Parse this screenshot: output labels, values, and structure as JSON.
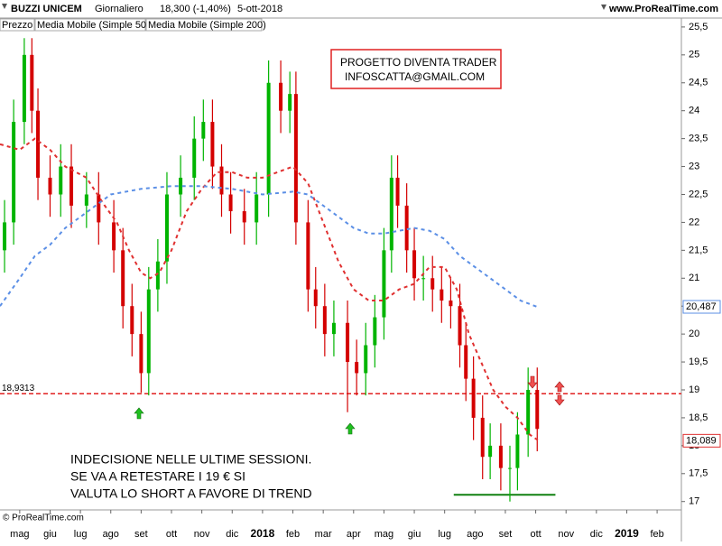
{
  "chart_data": {
    "type": "candlestick",
    "title": "BUZZI UNICEM",
    "period": "Giornaliero",
    "last_price": "18,300 (-1,40%)",
    "date": "5-ott-2018",
    "source": "www.ProRealTime.com",
    "copyright": "© ProRealTime.com",
    "price_name": "Prezzo",
    "x": [
      -0.5,
      -0.2,
      0.15,
      0.4,
      0.6,
      1.0,
      1.35,
      1.7,
      2.2,
      2.6,
      3.1,
      3.4,
      3.7,
      4.0,
      4.25,
      4.55,
      4.85,
      5.3,
      5.75,
      6.05,
      6.35,
      6.65,
      6.95,
      7.4,
      7.8,
      8.2,
      8.6,
      8.9,
      9.1,
      9.5,
      9.75,
      10.05,
      10.35,
      10.8,
      11.1,
      11.4,
      11.7,
      12.0,
      12.25,
      12.45,
      12.75,
      13.0,
      13.3,
      13.6,
      13.9,
      14.2,
      14.5,
      14.7,
      14.95,
      15.25,
      15.5,
      15.85,
      16.15,
      16.4,
      16.75,
      17.05
    ],
    "open": [
      21.5,
      22.0,
      23.8,
      25.0,
      24.0,
      22.8,
      22.5,
      23.0,
      22.3,
      22.5,
      22.0,
      21.5,
      20.5,
      20.0,
      19.3,
      20.8,
      21.3,
      22.5,
      22.8,
      23.5,
      23.8,
      23.0,
      22.5,
      22.2,
      22.0,
      22.5,
      24.5,
      24.0,
      24.3,
      22.0,
      20.8,
      20.5,
      20.0,
      20.2,
      19.5,
      19.3,
      19.8,
      20.3,
      21.5,
      22.8,
      22.3,
      21.5,
      21.0,
      21.0,
      20.8,
      20.6,
      20.5,
      19.8,
      19.2,
      18.5,
      17.8,
      18.0,
      17.6,
      17.6,
      18.2,
      19.0
    ],
    "high": [
      22.4,
      24.2,
      25.3,
      25.3,
      24.4,
      23.2,
      23.4,
      23.4,
      22.9,
      22.9,
      22.4,
      21.9,
      20.9,
      20.4,
      21.2,
      21.7,
      22.9,
      23.2,
      23.9,
      24.2,
      24.2,
      23.4,
      22.9,
      22.6,
      22.9,
      24.9,
      24.9,
      24.7,
      24.7,
      22.4,
      21.2,
      20.9,
      20.6,
      20.6,
      19.9,
      20.2,
      20.7,
      21.9,
      23.2,
      23.2,
      22.7,
      21.9,
      21.4,
      21.4,
      21.2,
      21.0,
      20.9,
      20.2,
      19.6,
      18.9,
      18.4,
      18.4,
      18.0,
      18.6,
      19.4,
      19.4
    ],
    "low": [
      21.1,
      21.6,
      23.4,
      23.6,
      22.4,
      22.1,
      22.1,
      21.9,
      21.9,
      21.6,
      21.1,
      20.1,
      19.6,
      18.95,
      18.9,
      20.4,
      20.9,
      22.1,
      22.4,
      23.1,
      22.6,
      22.1,
      21.8,
      21.6,
      21.6,
      22.1,
      23.6,
      23.6,
      21.6,
      20.4,
      20.1,
      19.6,
      19.6,
      18.6,
      18.9,
      18.9,
      19.4,
      19.9,
      21.1,
      21.9,
      21.1,
      20.6,
      20.6,
      20.4,
      20.2,
      20.1,
      19.4,
      18.8,
      18.1,
      17.4,
      17.4,
      17.2,
      17.0,
      17.2,
      17.8,
      17.9
    ],
    "close": [
      22.0,
      23.8,
      25.0,
      24.0,
      22.8,
      22.5,
      23.0,
      22.3,
      22.5,
      22.0,
      21.5,
      20.5,
      20.0,
      19.3,
      20.8,
      21.3,
      22.5,
      22.8,
      23.5,
      23.8,
      23.0,
      22.5,
      22.2,
      22.0,
      22.5,
      24.5,
      24.0,
      24.3,
      22.0,
      20.8,
      20.5,
      20.0,
      20.2,
      19.5,
      19.3,
      19.8,
      20.3,
      21.5,
      22.8,
      22.3,
      21.5,
      21.0,
      21.0,
      20.8,
      20.6,
      20.5,
      19.8,
      19.2,
      18.5,
      17.8,
      18.0,
      17.6,
      17.6,
      18.2,
      19.0,
      18.3
    ],
    "up_color": "#00b400",
    "down_color": "#d40000",
    "series": [
      {
        "name": "Media Mobile (Simple 50)",
        "color": "#e03030",
        "x": [
          -0.65,
          0,
          0.5,
          1,
          1.5,
          2.2,
          2.8,
          3.2,
          3.6,
          4.0,
          4.3,
          4.6,
          5.0,
          5.5,
          6.0,
          6.5,
          7.0,
          7.5,
          8.0,
          8.5,
          9.0,
          9.5,
          10.0,
          10.5,
          11.0,
          11.5,
          12.0,
          12.5,
          13.0,
          13.5,
          14.0,
          14.4,
          14.8,
          15.2,
          15.6,
          16.0,
          16.4,
          16.8,
          17.1
        ],
        "values": [
          23.4,
          23.3,
          23.5,
          23.3,
          23.0,
          22.8,
          22.3,
          22.0,
          21.5,
          21.1,
          21.0,
          21.1,
          21.5,
          22.2,
          22.6,
          22.9,
          22.9,
          22.8,
          22.8,
          22.9,
          23.0,
          22.7,
          22.0,
          21.3,
          20.8,
          20.6,
          20.6,
          20.8,
          20.9,
          21.2,
          21.2,
          20.8,
          20.0,
          19.5,
          19.0,
          18.7,
          18.5,
          18.2,
          18.089
        ],
        "value_labels": [
          null,
          null,
          null,
          null,
          null,
          null,
          null,
          null,
          null,
          null,
          null,
          null,
          null,
          null,
          null,
          null,
          null,
          null,
          null,
          null,
          null,
          null,
          null,
          null,
          null,
          null,
          null,
          null,
          null,
          null,
          null,
          null,
          null,
          null,
          null,
          null,
          null,
          null,
          "18,089"
        ]
      },
      {
        "name": "Media Mobile (Simple 200)",
        "color": "#5b8fe6",
        "x": [
          -0.65,
          0,
          0.5,
          1,
          1.5,
          2,
          2.5,
          3,
          3.5,
          4,
          5,
          6,
          7,
          8,
          9,
          9.5,
          10,
          10.5,
          11,
          11.5,
          12,
          12.5,
          13,
          13.5,
          14,
          14.5,
          15,
          15.5,
          16,
          16.5,
          17.05
        ],
        "values": [
          20.5,
          21.0,
          21.4,
          21.6,
          21.9,
          22.1,
          22.3,
          22.5,
          22.55,
          22.6,
          22.65,
          22.65,
          22.6,
          22.5,
          22.55,
          22.5,
          22.3,
          22.1,
          21.9,
          21.8,
          21.8,
          21.85,
          21.9,
          21.85,
          21.7,
          21.4,
          21.2,
          21.0,
          20.8,
          20.6,
          20.487
        ],
        "value_labels": [
          null,
          null,
          null,
          null,
          null,
          null,
          null,
          null,
          null,
          null,
          null,
          null,
          null,
          null,
          null,
          null,
          null,
          null,
          null,
          null,
          null,
          null,
          null,
          null,
          null,
          null,
          null,
          null,
          null,
          null,
          "20,487"
        ]
      }
    ],
    "levels": [
      {
        "value": 18.9313,
        "label": "18,9313",
        "color": "#e02020"
      },
      {
        "value": 17.12,
        "x": [
          14.3,
          17.65
        ],
        "color": "#108010"
      }
    ],
    "xlim": [
      -0.65,
      21.8
    ],
    "ylim": [
      16.85,
      25.66
    ],
    "xticks": [
      {
        "value": 0,
        "label": "mag"
      },
      {
        "value": 1,
        "label": "giu"
      },
      {
        "value": 2,
        "label": "lug"
      },
      {
        "value": 3,
        "label": "ago"
      },
      {
        "value": 4,
        "label": "set"
      },
      {
        "value": 5,
        "label": "ott"
      },
      {
        "value": 6,
        "label": "nov"
      },
      {
        "value": 7,
        "label": "dic"
      },
      {
        "value": 8,
        "label": "2018"
      },
      {
        "value": 9,
        "label": "feb"
      },
      {
        "value": 10,
        "label": "mar"
      },
      {
        "value": 11,
        "label": "apr"
      },
      {
        "value": 12,
        "label": "mag"
      },
      {
        "value": 13,
        "label": "giu"
      },
      {
        "value": 14,
        "label": "lug"
      },
      {
        "value": 15,
        "label": "ago"
      },
      {
        "value": 16,
        "label": "set"
      },
      {
        "value": 17,
        "label": "ott"
      },
      {
        "value": 18,
        "label": "nov"
      },
      {
        "value": 19,
        "label": "dic"
      },
      {
        "value": 20,
        "label": "2019"
      },
      {
        "value": 21,
        "label": "feb"
      }
    ],
    "yticks": [
      17,
      {
        "value": 17.5,
        "label": "17,5"
      },
      18,
      {
        "value": 18.5,
        "label": "18,5"
      },
      19,
      {
        "value": 19.5,
        "label": "19,5"
      },
      20,
      {
        "value": 20.5,
        "label": "20,5"
      },
      21,
      {
        "value": 21.5,
        "label": "21,5"
      },
      22,
      {
        "value": 22.5,
        "label": "22,5"
      },
      23,
      {
        "value": 23.5,
        "label": "23,5"
      },
      24,
      {
        "value": 24.5,
        "label": "24,5"
      },
      25,
      {
        "value": 25.5,
        "label": "25,5"
      }
    ],
    "box_text": [
      "PROGETTO DIVENTA TRADER",
      "INFOSCATTA@GMAIL.COM"
    ],
    "annotation": [
      "INDECISIONE NELLE ULTIME SESSIONI.",
      "SE VA A RETESTARE I 19 € SI",
      "VALUTA LO SHORT A FAVORE DI TREND"
    ]
  }
}
